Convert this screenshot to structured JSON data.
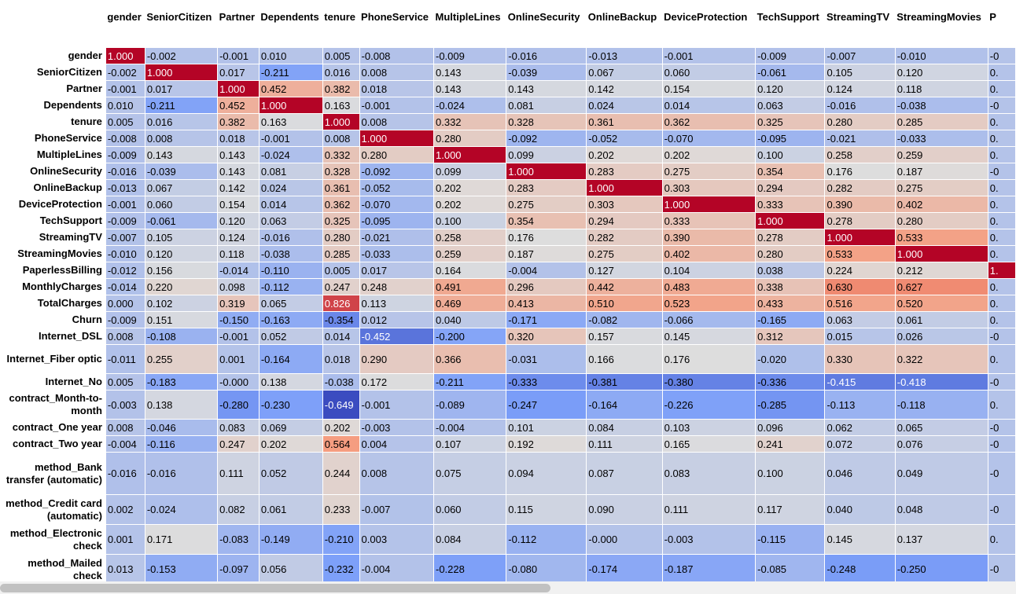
{
  "chart_data": {
    "type": "heatmap",
    "title": "",
    "colormap": "coolwarm",
    "vmin": -0.649,
    "vmax": 1.0,
    "columns": [
      "gender",
      "SeniorCitizen",
      "Partner",
      "Dependents",
      "tenure",
      "PhoneService",
      "MultipleLines",
      "OnlineSecurity",
      "OnlineBackup",
      "DeviceProtection",
      "TechSupport",
      "StreamingTV",
      "StreamingMovies",
      "P"
    ],
    "rows": [
      "gender",
      "SeniorCitizen",
      "Partner",
      "Dependents",
      "tenure",
      "PhoneService",
      "MultipleLines",
      "OnlineSecurity",
      "OnlineBackup",
      "DeviceProtection",
      "TechSupport",
      "StreamingTV",
      "StreamingMovies",
      "PaperlessBilling",
      "MonthlyCharges",
      "TotalCharges",
      "Churn",
      "Internet_DSL",
      "Internet_Fiber optic",
      "Internet_No",
      "contract_Month-to-month",
      "contract_One year",
      "contract_Two year",
      "method_Bank transfer (automatic)",
      "method_Credit card (automatic)",
      "method_Electronic check",
      "method_Mailed check"
    ],
    "values": [
      [
        "1.000",
        "-0.002",
        "-0.001",
        "0.010",
        "0.005",
        "-0.008",
        "-0.009",
        "-0.016",
        "-0.013",
        "-0.001",
        "-0.009",
        "-0.007",
        "-0.010",
        "-0"
      ],
      [
        "-0.002",
        "1.000",
        "0.017",
        "-0.211",
        "0.016",
        "0.008",
        "0.143",
        "-0.039",
        "0.067",
        "0.060",
        "-0.061",
        "0.105",
        "0.120",
        "0."
      ],
      [
        "-0.001",
        "0.017",
        "1.000",
        "0.452",
        "0.382",
        "0.018",
        "0.143",
        "0.143",
        "0.142",
        "0.154",
        "0.120",
        "0.124",
        "0.118",
        "0."
      ],
      [
        "0.010",
        "-0.211",
        "0.452",
        "1.000",
        "0.163",
        "-0.001",
        "-0.024",
        "0.081",
        "0.024",
        "0.014",
        "0.063",
        "-0.016",
        "-0.038",
        "-0"
      ],
      [
        "0.005",
        "0.016",
        "0.382",
        "0.163",
        "1.000",
        "0.008",
        "0.332",
        "0.328",
        "0.361",
        "0.362",
        "0.325",
        "0.280",
        "0.285",
        "0."
      ],
      [
        "-0.008",
        "0.008",
        "0.018",
        "-0.001",
        "0.008",
        "1.000",
        "0.280",
        "-0.092",
        "-0.052",
        "-0.070",
        "-0.095",
        "-0.021",
        "-0.033",
        "0."
      ],
      [
        "-0.009",
        "0.143",
        "0.143",
        "-0.024",
        "0.332",
        "0.280",
        "1.000",
        "0.099",
        "0.202",
        "0.202",
        "0.100",
        "0.258",
        "0.259",
        "0."
      ],
      [
        "-0.016",
        "-0.039",
        "0.143",
        "0.081",
        "0.328",
        "-0.092",
        "0.099",
        "1.000",
        "0.283",
        "0.275",
        "0.354",
        "0.176",
        "0.187",
        "-0"
      ],
      [
        "-0.013",
        "0.067",
        "0.142",
        "0.024",
        "0.361",
        "-0.052",
        "0.202",
        "0.283",
        "1.000",
        "0.303",
        "0.294",
        "0.282",
        "0.275",
        "0."
      ],
      [
        "-0.001",
        "0.060",
        "0.154",
        "0.014",
        "0.362",
        "-0.070",
        "0.202",
        "0.275",
        "0.303",
        "1.000",
        "0.333",
        "0.390",
        "0.402",
        "0."
      ],
      [
        "-0.009",
        "-0.061",
        "0.120",
        "0.063",
        "0.325",
        "-0.095",
        "0.100",
        "0.354",
        "0.294",
        "0.333",
        "1.000",
        "0.278",
        "0.280",
        "0."
      ],
      [
        "-0.007",
        "0.105",
        "0.124",
        "-0.016",
        "0.280",
        "-0.021",
        "0.258",
        "0.176",
        "0.282",
        "0.390",
        "0.278",
        "1.000",
        "0.533",
        "0."
      ],
      [
        "-0.010",
        "0.120",
        "0.118",
        "-0.038",
        "0.285",
        "-0.033",
        "0.259",
        "0.187",
        "0.275",
        "0.402",
        "0.280",
        "0.533",
        "1.000",
        "0."
      ],
      [
        "-0.012",
        "0.156",
        "-0.014",
        "-0.110",
        "0.005",
        "0.017",
        "0.164",
        "-0.004",
        "0.127",
        "0.104",
        "0.038",
        "0.224",
        "0.212",
        "1."
      ],
      [
        "-0.014",
        "0.220",
        "0.098",
        "-0.112",
        "0.247",
        "0.248",
        "0.491",
        "0.296",
        "0.442",
        "0.483",
        "0.338",
        "0.630",
        "0.627",
        "0."
      ],
      [
        "0.000",
        "0.102",
        "0.319",
        "0.065",
        "0.826",
        "0.113",
        "0.469",
        "0.413",
        "0.510",
        "0.523",
        "0.433",
        "0.516",
        "0.520",
        "0."
      ],
      [
        "-0.009",
        "0.151",
        "-0.150",
        "-0.163",
        "-0.354",
        "0.012",
        "0.040",
        "-0.171",
        "-0.082",
        "-0.066",
        "-0.165",
        "0.063",
        "0.061",
        "0."
      ],
      [
        "0.008",
        "-0.108",
        "-0.001",
        "0.052",
        "0.014",
        "-0.452",
        "-0.200",
        "0.320",
        "0.157",
        "0.145",
        "0.312",
        "0.015",
        "0.026",
        "-0"
      ],
      [
        "-0.011",
        "0.255",
        "0.001",
        "-0.164",
        "0.018",
        "0.290",
        "0.366",
        "-0.031",
        "0.166",
        "0.176",
        "-0.020",
        "0.330",
        "0.322",
        "0."
      ],
      [
        "0.005",
        "-0.183",
        "-0.000",
        "0.138",
        "-0.038",
        "0.172",
        "-0.211",
        "-0.333",
        "-0.381",
        "-0.380",
        "-0.336",
        "-0.415",
        "-0.418",
        "-0"
      ],
      [
        "-0.003",
        "0.138",
        "-0.280",
        "-0.230",
        "-0.649",
        "-0.001",
        "-0.089",
        "-0.247",
        "-0.164",
        "-0.226",
        "-0.285",
        "-0.113",
        "-0.118",
        "0."
      ],
      [
        "0.008",
        "-0.046",
        "0.083",
        "0.069",
        "0.202",
        "-0.003",
        "-0.004",
        "0.101",
        "0.084",
        "0.103",
        "0.096",
        "0.062",
        "0.065",
        "-0"
      ],
      [
        "-0.004",
        "-0.116",
        "0.247",
        "0.202",
        "0.564",
        "0.004",
        "0.107",
        "0.192",
        "0.111",
        "0.165",
        "0.241",
        "0.072",
        "0.076",
        "-0"
      ],
      [
        "-0.016",
        "-0.016",
        "0.111",
        "0.052",
        "0.244",
        "0.008",
        "0.075",
        "0.094",
        "0.087",
        "0.083",
        "0.100",
        "0.046",
        "0.049",
        "-0"
      ],
      [
        "0.002",
        "-0.024",
        "0.082",
        "0.061",
        "0.233",
        "-0.007",
        "0.060",
        "0.115",
        "0.090",
        "0.111",
        "0.117",
        "0.040",
        "0.048",
        "-0"
      ],
      [
        "0.001",
        "0.171",
        "-0.083",
        "-0.149",
        "-0.210",
        "0.003",
        "0.084",
        "-0.112",
        "-0.000",
        "-0.003",
        "-0.115",
        "0.145",
        "0.137",
        "0."
      ],
      [
        "0.013",
        "-0.153",
        "-0.097",
        "0.056",
        "-0.232",
        "-0.004",
        "-0.228",
        "-0.080",
        "-0.174",
        "-0.187",
        "-0.085",
        "-0.248",
        "-0.250",
        "-0"
      ]
    ]
  }
}
